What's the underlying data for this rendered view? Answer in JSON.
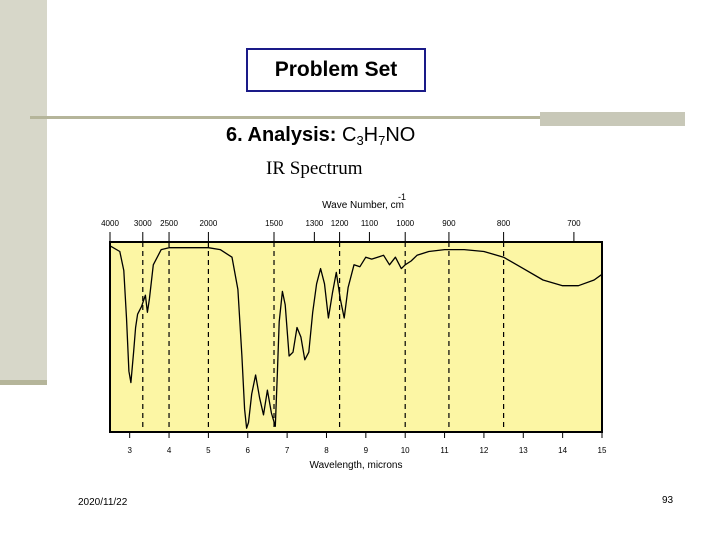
{
  "slide": {
    "title": "Problem Set",
    "heading_label": "6. Analysis:",
    "formula": {
      "c": "C",
      "c_n": "3",
      "h": "H",
      "h_n": "7",
      "rest": "NO"
    },
    "spectrum_title": "IR Spectrum",
    "date": "2020/11/22",
    "page_number": "93"
  },
  "colors": {
    "plot_bg": "#fcf6a4",
    "frame": "#000000",
    "title_border": "#1a1a88"
  },
  "chart_data": {
    "type": "line",
    "title": "IR Spectrum",
    "top_axis_label": "Wave Number, cm",
    "top_axis_label_sup": "-1",
    "xlabel": "Wavelength, microns",
    "xlim": [
      2.5,
      15
    ],
    "ylim": [
      0,
      100
    ],
    "wavenumber_ticks": [
      {
        "label": "4000",
        "micron": 2.5
      },
      {
        "label": "3000",
        "micron": 3.333
      },
      {
        "label": "2500",
        "micron": 4.0
      },
      {
        "label": "2000",
        "micron": 5.0
      },
      {
        "label": "1500",
        "micron": 6.667
      },
      {
        "label": "1300",
        "micron": 7.692
      },
      {
        "label": "1200",
        "micron": 8.333
      },
      {
        "label": "1100",
        "micron": 9.091
      },
      {
        "label": "1000",
        "micron": 10.0
      },
      {
        "label": "900",
        "micron": 11.111
      },
      {
        "label": "800",
        "micron": 12.5
      },
      {
        "label": "700",
        "micron": 14.286
      }
    ],
    "micron_ticks": [
      "3",
      "4",
      "5",
      "6",
      "7",
      "8",
      "9",
      "10",
      "11",
      "12",
      "13",
      "14",
      "15"
    ],
    "dashed_gridlines_micron": [
      3.333,
      4.0,
      5.0,
      6.667,
      8.333,
      10.0,
      11.111,
      12.5
    ],
    "series": [
      {
        "name": "Transmittance",
        "x": [
          2.5,
          2.75,
          2.85,
          2.92,
          2.98,
          3.03,
          3.1,
          3.15,
          3.2,
          3.3,
          3.4,
          3.45,
          3.5,
          3.6,
          3.8,
          4.0,
          4.3,
          4.7,
          5.0,
          5.3,
          5.6,
          5.75,
          5.85,
          5.92,
          5.97,
          6.02,
          6.1,
          6.2,
          6.3,
          6.4,
          6.5,
          6.6,
          6.7,
          6.75,
          6.8,
          6.88,
          6.95,
          7.05,
          7.15,
          7.25,
          7.35,
          7.45,
          7.55,
          7.65,
          7.75,
          7.85,
          7.95,
          8.05,
          8.15,
          8.25,
          8.35,
          8.45,
          8.55,
          8.7,
          8.85,
          9.0,
          9.15,
          9.3,
          9.45,
          9.6,
          9.75,
          9.9,
          10.0,
          10.15,
          10.3,
          10.6,
          11.0,
          11.5,
          12.0,
          12.5,
          13.0,
          13.5,
          14.0,
          14.4,
          14.8,
          15.0
        ],
        "y": [
          98,
          95,
          85,
          60,
          32,
          26,
          42,
          55,
          62,
          66,
          72,
          63,
          70,
          88,
          96,
          97,
          97,
          97,
          97,
          96,
          92,
          75,
          40,
          12,
          2,
          5,
          20,
          30,
          18,
          9,
          22,
          10,
          3,
          30,
          58,
          74,
          67,
          40,
          42,
          55,
          50,
          38,
          42,
          63,
          78,
          86,
          78,
          60,
          73,
          84,
          70,
          60,
          76,
          88,
          87,
          92,
          91,
          92,
          93,
          88,
          92,
          86,
          88,
          90,
          93,
          95,
          96,
          96,
          95,
          92,
          86,
          80,
          77,
          77,
          80,
          83
        ]
      }
    ]
  }
}
